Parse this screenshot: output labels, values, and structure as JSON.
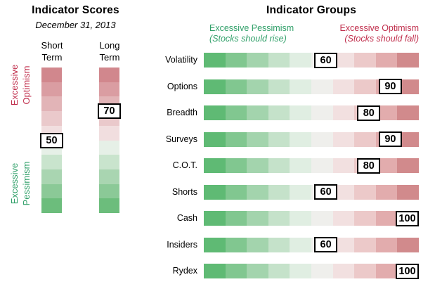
{
  "colors": {
    "optimism_red": "#c02e4c",
    "pessimism_green": "#2f9f68",
    "box_bg": "#ffffff",
    "box_border": "#000000",
    "h_palette": [
      "#5fba74",
      "#81c790",
      "#a3d4ad",
      "#c5e2ca",
      "#e0eee2",
      "#efefec",
      "#f2e0e0",
      "#ecc9c9",
      "#e2acad",
      "#d18a8c"
    ],
    "v_palette": [
      "#d1878d",
      "#da9da2",
      "#e2b4b7",
      "#eac9cb",
      "#f1dedf",
      "#e6f0e7",
      "#c9e4cd",
      "#a9d5b1",
      "#8bc997",
      "#6cbd7c"
    ]
  },
  "left_panel": {
    "title": "Indicator Scores",
    "subtitle": "December 31, 2013",
    "axis_top_label": "Excessive\nOptimism",
    "axis_bottom_label": "Excessive\nPessimism",
    "bars": [
      {
        "label": "Short\nTerm",
        "score": 50
      },
      {
        "label": "Long\nTerm",
        "score": 70
      }
    ]
  },
  "right_panel": {
    "title": "Indicator Groups",
    "left_header": {
      "line1": "Excessive Pessimism",
      "line2": "(Stocks should rise)"
    },
    "right_header": {
      "line1": "Excessive Optimism",
      "line2": "(Stocks should fall)"
    },
    "rows": [
      {
        "label": "Volatility",
        "score": 60
      },
      {
        "label": "Options",
        "score": 90
      },
      {
        "label": "Breadth",
        "score": 80
      },
      {
        "label": "Surveys",
        "score": 90
      },
      {
        "label": "C.O.T.",
        "score": 80
      },
      {
        "label": "Shorts",
        "score": 60
      },
      {
        "label": "Cash",
        "score": 100
      },
      {
        "label": "Insiders",
        "score": 60
      },
      {
        "label": "Rydex",
        "score": 100
      }
    ]
  },
  "chart_data": [
    {
      "type": "bar",
      "title": "Indicator Scores",
      "subtitle": "December 31, 2013",
      "orientation": "vertical-gauge",
      "categories": [
        "Short Term",
        "Long Term"
      ],
      "values": [
        50,
        70
      ],
      "ylim": [
        0,
        100
      ],
      "high_end_label": "Excessive Optimism",
      "low_end_label": "Excessive Pessimism",
      "gradient": "green (low/pessimism) to red (high/optimism)"
    },
    {
      "type": "bar",
      "title": "Indicator Groups",
      "orientation": "horizontal-gauge",
      "categories": [
        "Volatility",
        "Options",
        "Breadth",
        "Surveys",
        "C.O.T.",
        "Shorts",
        "Cash",
        "Insiders",
        "Rydex"
      ],
      "values": [
        60,
        90,
        80,
        90,
        80,
        60,
        100,
        60,
        100
      ],
      "xlim": [
        0,
        100
      ],
      "left_end_label": "Excessive Pessimism (Stocks should rise)",
      "right_end_label": "Excessive Optimism (Stocks should fall)",
      "gradient": "green (left/pessimism) to red (right/optimism)"
    }
  ]
}
